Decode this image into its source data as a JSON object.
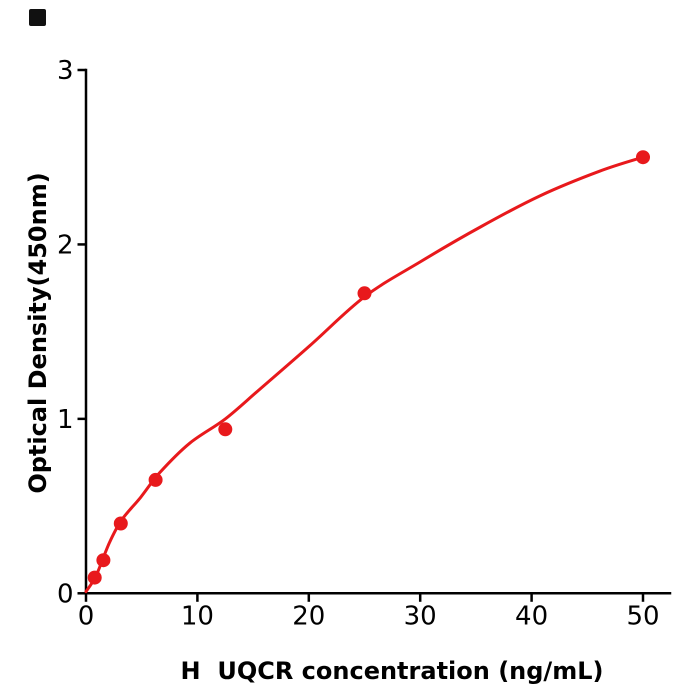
{
  "page": {
    "background": "#ffffff"
  },
  "corner_marker": {
    "color": "#111111"
  },
  "chart_data": {
    "type": "scatter",
    "subtype": "standard-curve-with-fit",
    "title": "",
    "xlabel": "H  UQCR concentration (ng/mL)",
    "ylabel": "Optical Density(450nm)",
    "x": [
      0.78,
      1.56,
      3.125,
      6.25,
      12.5,
      25,
      50
    ],
    "y": [
      0.09,
      0.19,
      0.4,
      0.65,
      0.94,
      1.72,
      2.5
    ],
    "fit_curve": [
      [
        0,
        0.01
      ],
      [
        0.9,
        0.1
      ],
      [
        2.1,
        0.29
      ],
      [
        3.2,
        0.42
      ],
      [
        4.9,
        0.55
      ],
      [
        6.6,
        0.69
      ],
      [
        9.3,
        0.86
      ],
      [
        12.5,
        1.0
      ],
      [
        15.6,
        1.17
      ],
      [
        20.1,
        1.42
      ],
      [
        25,
        1.7
      ],
      [
        30,
        1.9
      ],
      [
        35.4,
        2.1
      ],
      [
        40.8,
        2.28
      ],
      [
        46.1,
        2.42
      ],
      [
        50,
        2.5
      ]
    ],
    "xticks": [
      "0",
      "10",
      "20",
      "30",
      "40",
      "50"
    ],
    "xtick_values": [
      0,
      10,
      20,
      30,
      40,
      50
    ],
    "yticks": [
      "0",
      "1",
      "2",
      "3"
    ],
    "ytick_values": [
      0,
      1,
      2,
      3
    ],
    "xlim": [
      0,
      52.4
    ],
    "ylim": [
      0,
      3
    ],
    "grid": false,
    "legend": null,
    "point_color": "#e8191c",
    "curve_color": "#e8191c",
    "axis_color": "#000000"
  }
}
